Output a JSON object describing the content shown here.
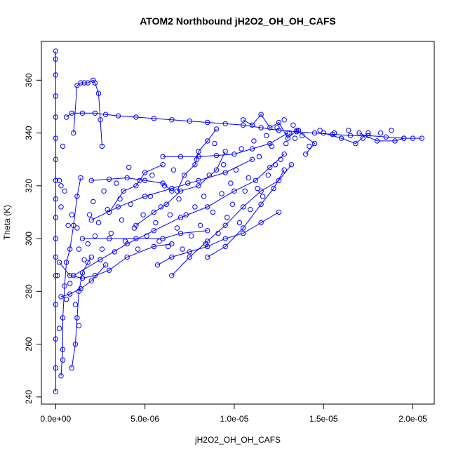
{
  "chart_data": {
    "type": "scatter",
    "title": "ATOM2 Northbound jH2O2_OH_OH_CAFS",
    "xlabel": "jH2O2_OH_OH_CAFS",
    "ylabel": "Theta (K)",
    "xlim": [
      -8e-07,
      2.12e-05
    ],
    "ylim": [
      237.3,
      374.7
    ],
    "x_ticks": [
      0,
      5e-06,
      1e-05,
      1.5e-05,
      2e-05
    ],
    "x_tick_labels": [
      "0.0e+00",
      "5.0e-06",
      "1.0e-05",
      "1.5e-05",
      "2.0e-05"
    ],
    "y_ticks": [
      240,
      260,
      280,
      300,
      320,
      340,
      360
    ],
    "y_tick_labels": [
      "240",
      "260",
      "280",
      "300",
      "320",
      "340",
      "360"
    ],
    "grid": false,
    "marker": "open-circle",
    "connected": true,
    "color": "#0000ff",
    "series": [
      {
        "segments": [
          [
            [
              0.0,
              242
            ],
            [
              0.0,
              251
            ],
            [
              0.0,
              262
            ],
            [
              0.0,
              275
            ],
            [
              0.0,
              286
            ],
            [
              0.0,
              293
            ],
            [
              0.0,
              300
            ],
            [
              0.0,
              308
            ],
            [
              0.0,
              315
            ],
            [
              0.0,
              322
            ],
            [
              0.0,
              330
            ],
            [
              0.0,
              338
            ],
            [
              0.0,
              346
            ],
            [
              0.0,
              354
            ],
            [
              0.0,
              362
            ],
            [
              0.0,
              368
            ],
            [
              0.0,
              371
            ]
          ],
          [
            [
              3e-07,
              248
            ],
            [
              4e-07,
              258
            ],
            [
              4e-07,
              270
            ],
            [
              5e-07,
              282
            ],
            [
              6e-07,
              291
            ],
            [
              8e-07,
              296
            ],
            [
              1e-06,
              305
            ],
            [
              1.2e-06,
              316
            ],
            [
              1.4e-06,
              323
            ]
          ],
          [
            [
              9e-07,
              251
            ],
            [
              1.1e-06,
              260
            ],
            [
              1.2e-06,
              270
            ],
            [
              1.3e-06,
              280
            ],
            [
              1.5e-06,
              287
            ],
            [
              1.8e-06,
              291
            ],
            [
              2e-06,
              293
            ]
          ],
          [
            [
              1e-06,
              340
            ],
            [
              1.2e-06,
              358
            ],
            [
              1.4e-06,
              359
            ],
            [
              1.6e-06,
              359
            ],
            [
              1.8e-06,
              359
            ],
            [
              2.1e-06,
              360
            ],
            [
              2.2e-06,
              359
            ],
            [
              2.4e-06,
              355
            ],
            [
              2.5e-06,
              345
            ],
            [
              2.6e-06,
              335
            ]
          ],
          [
            [
              6e-07,
              346
            ],
            [
              9e-07,
              347.5
            ],
            [
              1.5e-06,
              347.5
            ],
            [
              2.2e-06,
              347.5
            ],
            [
              2.8e-06,
              347
            ],
            [
              3.5e-06,
              346.5
            ],
            [
              4.5e-06,
              346
            ],
            [
              5.5e-06,
              345.5
            ],
            [
              6.5e-06,
              345
            ],
            [
              7.5e-06,
              344.5
            ],
            [
              8.5e-06,
              344
            ],
            [
              9.5e-06,
              343.5
            ],
            [
              1.05e-05,
              343
            ],
            [
              1.15e-05,
              342
            ],
            [
              1.25e-05,
              341
            ]
          ],
          [
            [
              1.25e-05,
              341
            ],
            [
              1.35e-05,
              340.5
            ],
            [
              1.45e-05,
              340
            ],
            [
              1.55e-05,
              339.5
            ],
            [
              1.65e-05,
              339
            ],
            [
              1.75e-05,
              339
            ],
            [
              1.85e-05,
              338.5
            ],
            [
              1.95e-05,
              338
            ],
            [
              2.05e-05,
              338
            ]
          ],
          [
            [
              2e-06,
              322
            ],
            [
              3e-06,
              322.5
            ],
            [
              4e-06,
              323
            ],
            [
              5e-06,
              322
            ],
            [
              6e-06,
              321
            ],
            [
              6.5e-06,
              318
            ]
          ],
          [
            [
              2e-06,
              307
            ],
            [
              3.5e-06,
              312
            ],
            [
              5e-06,
              316
            ],
            [
              6.5e-06,
              319
            ],
            [
              8e-06,
              322
            ],
            [
              9.5e-06,
              325
            ],
            [
              1.1e-05,
              330
            ]
          ],
          [
            [
              1e-06,
              286
            ],
            [
              2.5e-06,
              292
            ],
            [
              4e-06,
              298
            ],
            [
              5.5e-06,
              303
            ],
            [
              7e-06,
              308
            ],
            [
              8.5e-06,
              312
            ],
            [
              1e-05,
              318
            ],
            [
              1.12e-05,
              322
            ],
            [
              1.2e-05,
              327
            ],
            [
              1.28e-05,
              332
            ]
          ],
          [
            [
              1.5e-06,
              300
            ],
            [
              3e-06,
              300
            ],
            [
              4.5e-06,
              300
            ],
            [
              6e-06,
              300
            ],
            [
              7e-06,
              302
            ],
            [
              8.5e-06,
              303
            ]
          ],
          [
            [
              5.7e-06,
              290
            ],
            [
              6.5e-06,
              293
            ],
            [
              7.5e-06,
              295
            ],
            [
              8.5e-06,
              297
            ],
            [
              9.5e-06,
              300
            ],
            [
              1.05e-05,
              302
            ],
            [
              1.15e-05,
              306
            ],
            [
              1.25e-05,
              310
            ]
          ],
          [
            [
              6.5e-06,
              286
            ],
            [
              7.5e-06,
              293
            ],
            [
              8.5e-06,
              299
            ],
            [
              9.5e-06,
              305
            ],
            [
              1.05e-05,
              312
            ],
            [
              1.15e-05,
              318
            ],
            [
              1.25e-05,
              322
            ],
            [
              1.32e-05,
              328
            ]
          ],
          [
            [
              6e-06,
              331
            ],
            [
              7e-06,
              331
            ],
            [
              8e-06,
              331
            ],
            [
              9e-06,
              331.5
            ],
            [
              1e-05,
              332
            ],
            [
              1.1e-05,
              334
            ],
            [
              1.2e-05,
              336
            ],
            [
              1.3e-05,
              340
            ]
          ],
          [
            [
              1.05e-05,
              345
            ],
            [
              1.1e-05,
              343
            ],
            [
              1.15e-05,
              347
            ],
            [
              1.2e-05,
              342
            ],
            [
              1.25e-05,
              344
            ],
            [
              1.3e-05,
              338
            ],
            [
              1.35e-05,
              341
            ],
            [
              1.45e-05,
              336
            ],
            [
              1.4e-05,
              332
            ]
          ],
          [
            [
              8.5e-06,
              293
            ],
            [
              9.5e-06,
              297
            ],
            [
              1.05e-05,
              304
            ],
            [
              1.15e-05,
              313
            ],
            [
              1.22e-05,
              319
            ],
            [
              1.28e-05,
              326
            ]
          ],
          [
            [
              4.5e-06,
              305
            ],
            [
              5.5e-06,
              310
            ],
            [
              6.2e-06,
              313
            ],
            [
              7e-06,
              318
            ],
            [
              8e-06,
              320
            ],
            [
              9e-06,
              326
            ],
            [
              9.5e-06,
              333
            ]
          ],
          [
            [
              3e-06,
              310
            ],
            [
              3.8e-06,
              318
            ],
            [
              4.5e-06,
              320
            ],
            [
              5e-06,
              325
            ],
            [
              6e-06,
              328
            ]
          ],
          [
            [
              9e-06,
              341.5
            ],
            [
              8.5e-06,
              337
            ],
            [
              8e-06,
              333
            ],
            [
              7.8e-06,
              328
            ],
            [
              7.2e-06,
              324
            ],
            [
              6.8e-06,
              318
            ]
          ],
          [
            [
              2e-07,
              291
            ],
            [
              8e-07,
              286
            ],
            [
              1.5e-06,
              285
            ],
            [
              2.2e-06,
              286
            ],
            [
              3e-06,
              288
            ],
            [
              4e-06,
              293
            ],
            [
              5.5e-06,
              297
            ],
            [
              6.5e-06,
              298
            ]
          ],
          [
            [
              3e-07,
              278
            ],
            [
              8e-07,
              279
            ],
            [
              1.4e-06,
              281
            ],
            [
              2e-06,
              284
            ],
            [
              2.8e-06,
              290
            ]
          ],
          [
            [
              1.7e-05,
              340
            ],
            [
              1.8e-05,
              337
            ],
            [
              1.9e-05,
              337
            ],
            [
              1.95e-05,
              338
            ]
          ],
          [
            [
              1.5e-05,
              340
            ],
            [
              1.6e-05,
              338
            ],
            [
              1.68e-05,
              336
            ],
            [
              1.75e-05,
              340
            ]
          ]
        ],
        "points": [
          [
            2e-07,
            322
          ],
          [
            3e-07,
            320
          ],
          [
            5e-07,
            318
          ],
          [
            7e-07,
            305
          ],
          [
            9e-07,
            309
          ],
          [
            1.2e-06,
            304
          ],
          [
            1.3e-06,
            296
          ],
          [
            1.6e-06,
            292
          ],
          [
            1.8e-06,
            298
          ],
          [
            1.9e-06,
            309
          ],
          [
            2.1e-06,
            314
          ],
          [
            2.2e-06,
            301
          ],
          [
            2.4e-06,
            306
          ],
          [
            2.6e-06,
            296
          ],
          [
            2.7e-06,
            318
          ],
          [
            2.9e-06,
            311
          ],
          [
            3.1e-06,
            302
          ],
          [
            3.3e-06,
            295
          ],
          [
            3.4e-06,
            321
          ],
          [
            3.6e-06,
            315
          ],
          [
            3.7e-06,
            307
          ],
          [
            3.9e-06,
            299
          ],
          [
            4.1e-06,
            327
          ],
          [
            4.2e-06,
            313
          ],
          [
            4.4e-06,
            304
          ],
          [
            4.6e-06,
            296
          ],
          [
            4.7e-06,
            322
          ],
          [
            4.9e-06,
            309
          ],
          [
            5.1e-06,
            301
          ],
          [
            5.3e-06,
            316
          ],
          [
            5.4e-06,
            324
          ],
          [
            5.6e-06,
            306
          ],
          [
            5.8e-06,
            299
          ],
          [
            5.9e-06,
            312
          ],
          [
            6.1e-06,
            320
          ],
          [
            6.3e-06,
            297
          ],
          [
            6.4e-06,
            309
          ],
          [
            6.6e-06,
            326
          ],
          [
            6.8e-06,
            304
          ],
          [
            6.9e-06,
            315
          ],
          [
            7.1e-06,
            296
          ],
          [
            7.3e-06,
            309
          ],
          [
            7.4e-06,
            321
          ],
          [
            7.6e-06,
            301
          ],
          [
            7.8e-06,
            312
          ],
          [
            7.9e-06,
            330
          ],
          [
            8.1e-06,
            305
          ],
          [
            8.3e-06,
            316
          ],
          [
            8.4e-06,
            298
          ],
          [
            8.6e-06,
            324
          ],
          [
            8.8e-06,
            310
          ],
          [
            8.9e-06,
            336
          ],
          [
            9.1e-06,
            302
          ],
          [
            9.3e-06,
            317
          ],
          [
            9.4e-06,
            328
          ],
          [
            9.6e-06,
            308
          ],
          [
            9.8e-06,
            321
          ],
          [
            9.9e-06,
            313
          ],
          [
            1.01e-05,
            326
          ],
          [
            1.03e-05,
            306
          ],
          [
            1.04e-05,
            334
          ],
          [
            1.06e-05,
            318
          ],
          [
            1.08e-05,
            323
          ],
          [
            1.09e-05,
            311
          ],
          [
            1.11e-05,
            337
          ],
          [
            1.13e-05,
            319
          ],
          [
            1.14e-05,
            331
          ],
          [
            1.16e-05,
            316
          ],
          [
            1.18e-05,
            339
          ],
          [
            1.19e-05,
            324
          ],
          [
            1.21e-05,
            335
          ],
          [
            1.23e-05,
            328
          ],
          [
            1.24e-05,
            342
          ],
          [
            1.26e-05,
            330
          ],
          [
            1.28e-05,
            345
          ],
          [
            1.29e-05,
            336
          ],
          [
            1.31e-05,
            340
          ],
          [
            1.33e-05,
            343
          ],
          [
            1.34e-05,
            338
          ],
          [
            1.36e-05,
            341
          ],
          [
            1.38e-05,
            339
          ],
          [
            1.42e-05,
            335
          ],
          [
            1.48e-05,
            341
          ],
          [
            1.56e-05,
            340
          ],
          [
            1.64e-05,
            341
          ],
          [
            1.72e-05,
            338
          ],
          [
            1.82e-05,
            340
          ],
          [
            1.88e-05,
            341
          ],
          [
            2e-05,
            338
          ],
          [
            1e-07,
            286
          ],
          [
            2e-07,
            266
          ],
          [
            4e-07,
            254
          ],
          [
            6e-07,
            277
          ],
          [
            8e-07,
            283
          ],
          [
            1.1e-06,
            275
          ],
          [
            1.3e-06,
            267
          ],
          [
            4e-07,
            335
          ],
          [
            3e-07,
            312
          ]
        ]
      }
    ]
  }
}
